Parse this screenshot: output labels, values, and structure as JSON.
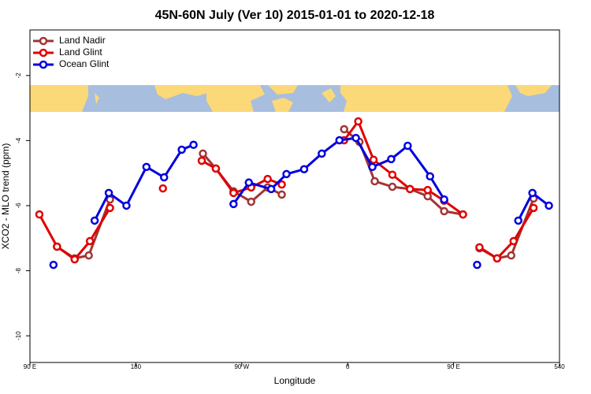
{
  "chart_data": {
    "type": "line",
    "title": "45N-60N July (Ver 10)   2015-01-01 to 2020-12-18",
    "xlabel": "Longitude",
    "ylabel": "XCO2 - MLO trend (ppm)",
    "xlim": [
      90,
      540
    ],
    "ylim": [
      -10.82,
      -0.6
    ],
    "xticks": [
      {
        "value": 90,
        "label": "90 E"
      },
      180,
      {
        "value": 270,
        "label": "90 W"
      },
      {
        "value": 360,
        "label": "0"
      },
      {
        "value": 450,
        "label": "90 E"
      },
      540
    ],
    "yticks": [
      -2,
      -4,
      -6,
      -8,
      -10
    ],
    "legend": "topleft",
    "series": [
      {
        "name": "Land Nadir",
        "color": "#a33434",
        "x": [
          113,
          128,
          140,
          158,
          null,
          237,
          248,
          263,
          278,
          292,
          304,
          null,
          357,
          370,
          383,
          398,
          413,
          428,
          442,
          458,
          null,
          472,
          487,
          499,
          518
        ],
        "values": [
          -7.26,
          -7.62,
          -7.53,
          -5.81,
          null,
          -4.4,
          -4.86,
          -5.56,
          -5.88,
          -5.44,
          -5.66,
          null,
          -3.65,
          -4.04,
          -5.25,
          -5.42,
          -5.49,
          -5.71,
          -6.17,
          -6.27,
          null,
          -7.31,
          -7.62,
          -7.53,
          -5.78
        ]
      },
      {
        "name": "Land Glint",
        "color": "#e00000",
        "x": [
          98,
          113,
          128,
          141,
          158,
          null,
          203,
          null,
          236,
          248,
          263,
          278,
          292,
          304,
          null,
          357,
          369,
          382,
          398,
          413,
          428,
          442,
          458,
          null,
          472,
          487,
          501,
          518
        ],
        "values": [
          -6.27,
          -7.26,
          -7.65,
          -7.09,
          -6.07,
          null,
          -5.47,
          null,
          -4.62,
          -4.86,
          -5.61,
          -5.44,
          -5.18,
          -5.35,
          null,
          -3.99,
          -3.41,
          -4.59,
          -5.05,
          -5.49,
          -5.52,
          -5.85,
          -6.27,
          null,
          -7.28,
          -7.62,
          -7.09,
          -6.07
        ]
      },
      {
        "name": "Ocean Glint",
        "color": "#0000e0",
        "x": [
          110,
          null,
          145,
          157,
          172,
          189,
          204,
          219,
          229,
          null,
          263,
          276,
          295,
          308,
          323,
          338,
          353,
          367,
          381,
          397,
          411,
          430,
          442,
          null,
          470,
          null,
          505,
          517,
          531
        ],
        "values": [
          -7.82,
          null,
          -6.46,
          -5.61,
          -6.0,
          -4.81,
          -5.13,
          -4.28,
          -4.13,
          null,
          -5.95,
          -5.29,
          -5.49,
          -5.03,
          -4.88,
          -4.4,
          -3.99,
          -3.92,
          -4.81,
          -4.57,
          -4.16,
          -5.1,
          -5.81,
          null,
          -7.82,
          null,
          -6.46,
          -5.61,
          -6.0
        ]
      }
    ]
  }
}
